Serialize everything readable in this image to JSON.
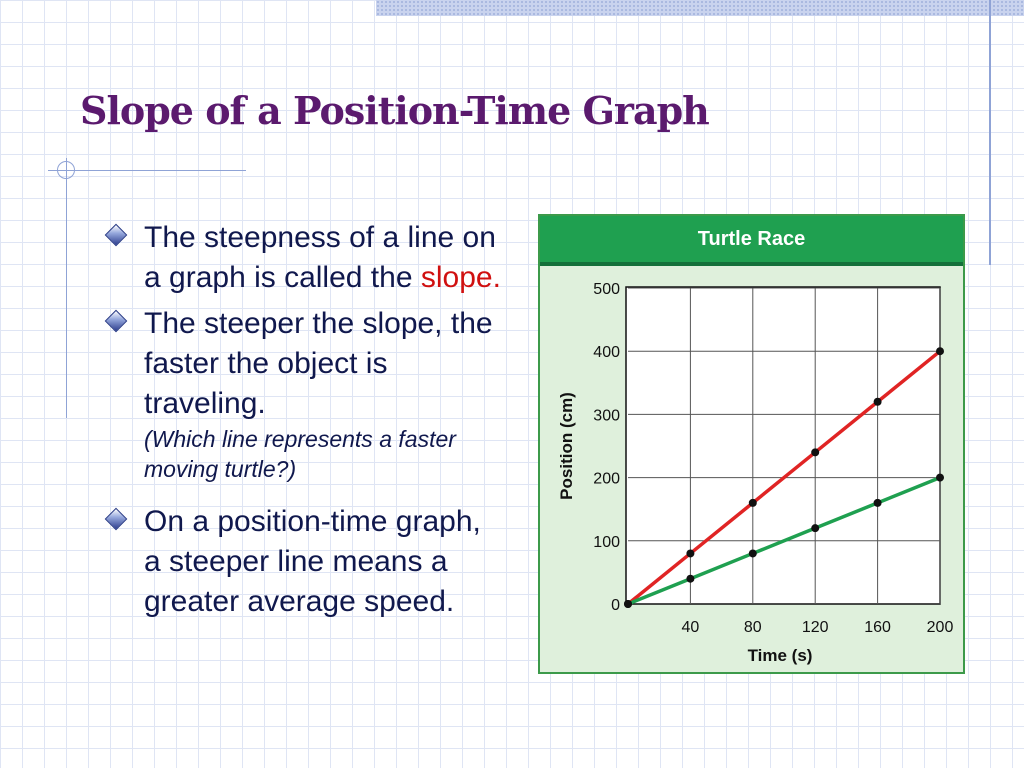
{
  "slide": {
    "title": "Slope of a Position-Time Graph"
  },
  "bullets": {
    "b1_text": "The steepness of a line on a graph is called the ",
    "b1_highlight": "slope.",
    "b2_text": "The steeper the slope, the faster the object is traveling.",
    "b2_note": "(Which line represents a faster moving turtle?)",
    "b3_text": "On a position-time graph, a steeper line means a greater average speed."
  },
  "colors": {
    "title": "#5b1a6e",
    "highlight": "#d01010",
    "header": "#1fa050",
    "red_line": "#e02424",
    "green_line": "#1fa050"
  },
  "chart_data": {
    "type": "line",
    "title": "Turtle Race",
    "xlabel": "Time (s)",
    "ylabel": "Position (cm)",
    "x_ticks": [
      40,
      80,
      120,
      160,
      200
    ],
    "y_ticks": [
      0,
      100,
      200,
      300,
      400,
      500
    ],
    "xlim": [
      0,
      200
    ],
    "ylim": [
      0,
      500
    ],
    "grid": true,
    "x": [
      0,
      40,
      80,
      120,
      160,
      200
    ],
    "series": [
      {
        "values": [
          0,
          80,
          160,
          240,
          320,
          400
        ],
        "color": "#e02424"
      },
      {
        "values": [
          0,
          40,
          80,
          120,
          160,
          200
        ],
        "color": "#1fa050"
      }
    ]
  }
}
